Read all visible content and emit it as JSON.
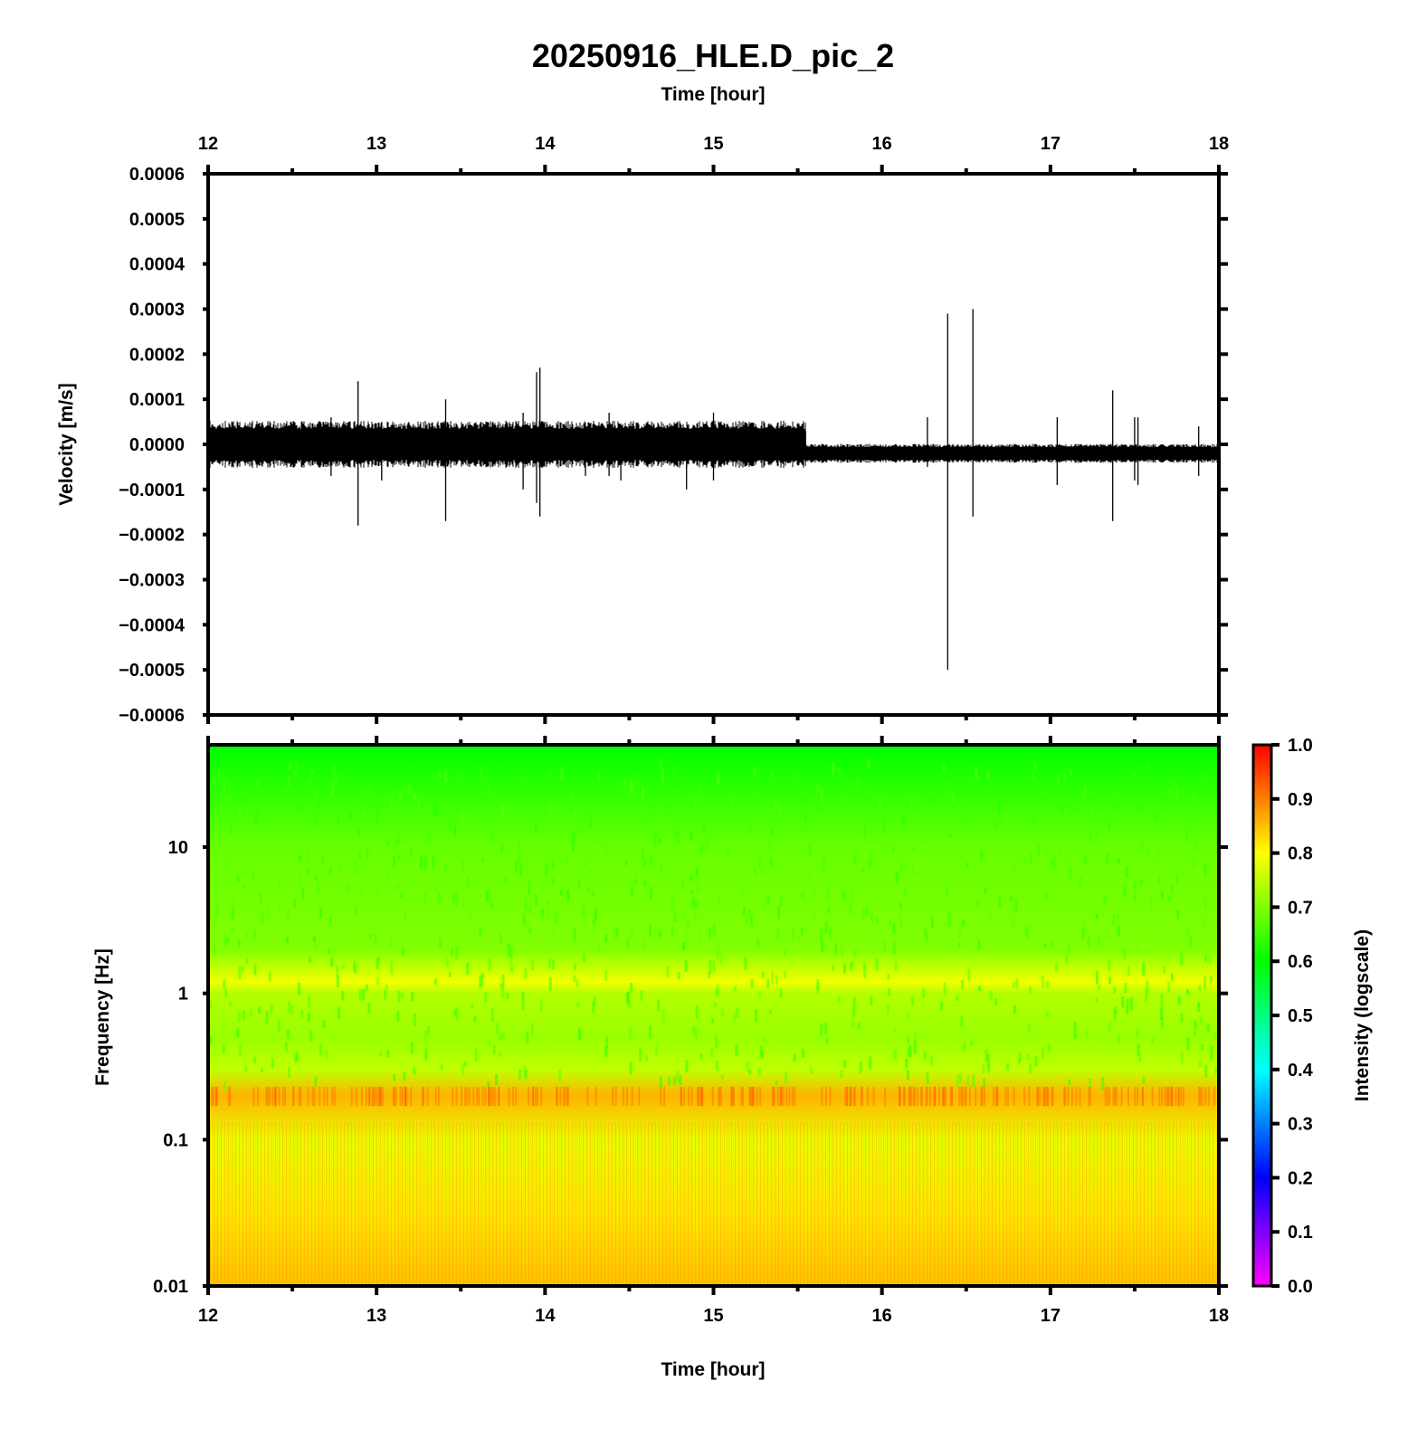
{
  "chart_data": [
    {
      "type": "line",
      "title": "20250916_HLE.D_pic_2",
      "top_axis_label": "Time [hour]",
      "ylabel": "Velocity [m/s]",
      "xlim": [
        12,
        18
      ],
      "ylim": [
        -0.0006,
        0.0006
      ],
      "x_ticks": [
        "12",
        "13",
        "14",
        "15",
        "16",
        "17",
        "18"
      ],
      "y_ticks": [
        "0.0006",
        "0.0005",
        "0.0004",
        "0.0003",
        "0.0002",
        "0.0001",
        "0.0000",
        "−0.0001",
        "−0.0002",
        "−0.0003",
        "−0.0004",
        "−0.0005",
        "−0.0006"
      ],
      "trace_color": "#000000",
      "baseline_offsets": [
        {
          "from": 12,
          "to": 15.55,
          "value": 0.0
        },
        {
          "from": 15.55,
          "to": 18,
          "value": -2e-05
        }
      ],
      "noise_band": [
        {
          "from": 12,
          "to": 15.55,
          "amplitude": 3e-05
        },
        {
          "from": 15.55,
          "to": 18,
          "amplitude": 1.2e-05
        }
      ],
      "spikes": [
        {
          "x": 12.73,
          "max": 6e-05,
          "min": -7e-05
        },
        {
          "x": 12.89,
          "max": 0.00014,
          "min": -0.00018
        },
        {
          "x": 13.03,
          "max": 5e-05,
          "min": -8e-05
        },
        {
          "x": 13.41,
          "max": 0.0001,
          "min": -0.00017
        },
        {
          "x": 13.87,
          "max": 7e-05,
          "min": -0.0001
        },
        {
          "x": 13.95,
          "max": 0.00016,
          "min": -0.00013
        },
        {
          "x": 13.97,
          "max": 0.00017,
          "min": -0.00016
        },
        {
          "x": 14.24,
          "max": 4e-05,
          "min": -7e-05
        },
        {
          "x": 14.38,
          "max": 7e-05,
          "min": -7e-05
        },
        {
          "x": 14.45,
          "max": 4e-05,
          "min": -8e-05
        },
        {
          "x": 14.84,
          "max": 3e-05,
          "min": -0.0001
        },
        {
          "x": 15.0,
          "max": 7e-05,
          "min": -8e-05
        },
        {
          "x": 16.27,
          "max": 6e-05,
          "min": -5e-05
        },
        {
          "x": 16.39,
          "max": 0.00029,
          "min": -0.0005
        },
        {
          "x": 16.54,
          "max": 0.0003,
          "min": -0.00016
        },
        {
          "x": 17.04,
          "max": 6e-05,
          "min": -9e-05
        },
        {
          "x": 17.37,
          "max": 0.00012,
          "min": -0.00017
        },
        {
          "x": 17.5,
          "max": 6e-05,
          "min": -8e-05
        },
        {
          "x": 17.52,
          "max": 6e-05,
          "min": -9e-05
        },
        {
          "x": 17.88,
          "max": 4e-05,
          "min": -7e-05
        }
      ]
    },
    {
      "type": "heatmap",
      "xlabel": "Time [hour]",
      "ylabel": "Frequency [Hz]",
      "xlim": [
        12,
        18
      ],
      "ylim": [
        0.01,
        50
      ],
      "y_scale": "log",
      "x_ticks": [
        "12",
        "13",
        "14",
        "15",
        "16",
        "17",
        "18"
      ],
      "y_ticks": [
        "10",
        "1",
        "0.1",
        "0.01"
      ],
      "colorbar": {
        "label": "Intensity (logscale)",
        "range": [
          0.0,
          1.0
        ],
        "ticks": [
          "1.0",
          "0.9",
          "0.8",
          "0.7",
          "0.6",
          "0.5",
          "0.4",
          "0.3",
          "0.2",
          "0.1",
          "0.0"
        ],
        "colors": [
          "#ff00ff",
          "#0000ff",
          "#00ffff",
          "#00ff00",
          "#ffff00",
          "#ff0000"
        ]
      },
      "intensity_profile": [
        {
          "freq": 0.01,
          "intensity": 0.85
        },
        {
          "freq": 0.03,
          "intensity": 0.82
        },
        {
          "freq": 0.1,
          "intensity": 0.78
        },
        {
          "freq": 0.2,
          "intensity": 0.86
        },
        {
          "freq": 0.3,
          "intensity": 0.75
        },
        {
          "freq": 0.5,
          "intensity": 0.72
        },
        {
          "freq": 1,
          "intensity": 0.74
        },
        {
          "freq": 1.2,
          "intensity": 0.79
        },
        {
          "freq": 2,
          "intensity": 0.7
        },
        {
          "freq": 10,
          "intensity": 0.68
        },
        {
          "freq": 50,
          "intensity": 0.6
        }
      ]
    }
  ]
}
